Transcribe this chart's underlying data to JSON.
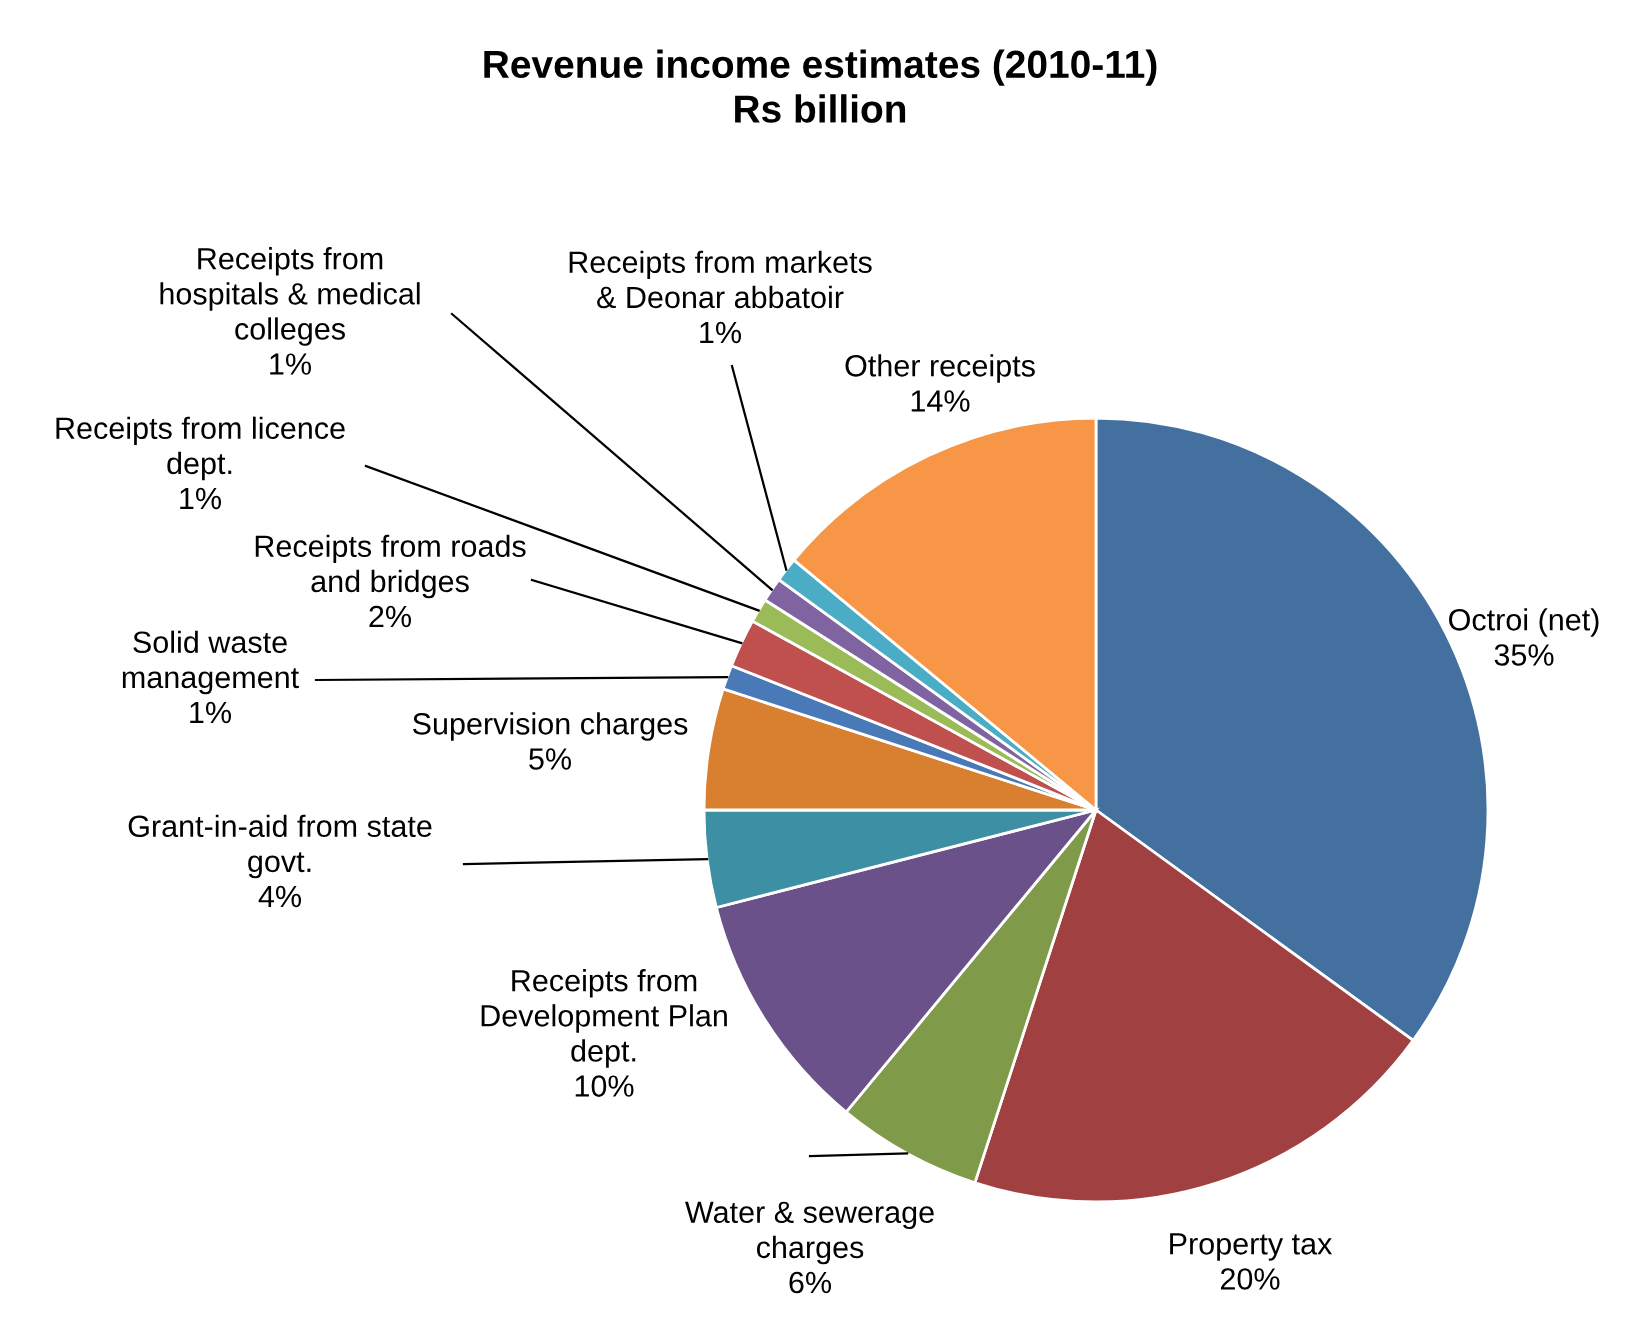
{
  "chart_data": {
    "type": "pie",
    "title": "Revenue income estimates (2010-11)\nRs billion",
    "categories": [
      "Octroi (net)",
      "Property tax",
      "Water & sewerage\ncharges",
      "Receipts from\nDevelopment Plan\ndept.",
      "Grant-in-aid from state\ngovt.",
      "Supervision charges",
      "Solid waste\nmanagement",
      "Receipts from roads\nand bridges",
      "Receipts from licence\ndept.",
      "Receipts from\nhospitals & medical\ncolleges",
      "Receipts from markets\n& Deonar abbatoir",
      "Other receipts"
    ],
    "values": [
      35,
      20,
      6,
      10,
      4,
      5,
      1,
      2,
      1,
      1,
      1,
      14
    ],
    "value_labels": [
      "35%",
      "20%",
      "6%",
      "10%",
      "4%",
      "5%",
      "1%",
      "2%",
      "1%",
      "1%",
      "1%",
      "14%"
    ],
    "colors": [
      "#4470a0",
      "#a04040",
      "#7f9a48",
      "#6a5189",
      "#3d8fa4",
      "#d98030",
      "#4a79b8",
      "#c0504d",
      "#9bbb59",
      "#8064a2",
      "#4bacc6",
      "#f79646"
    ],
    "legend": false
  }
}
